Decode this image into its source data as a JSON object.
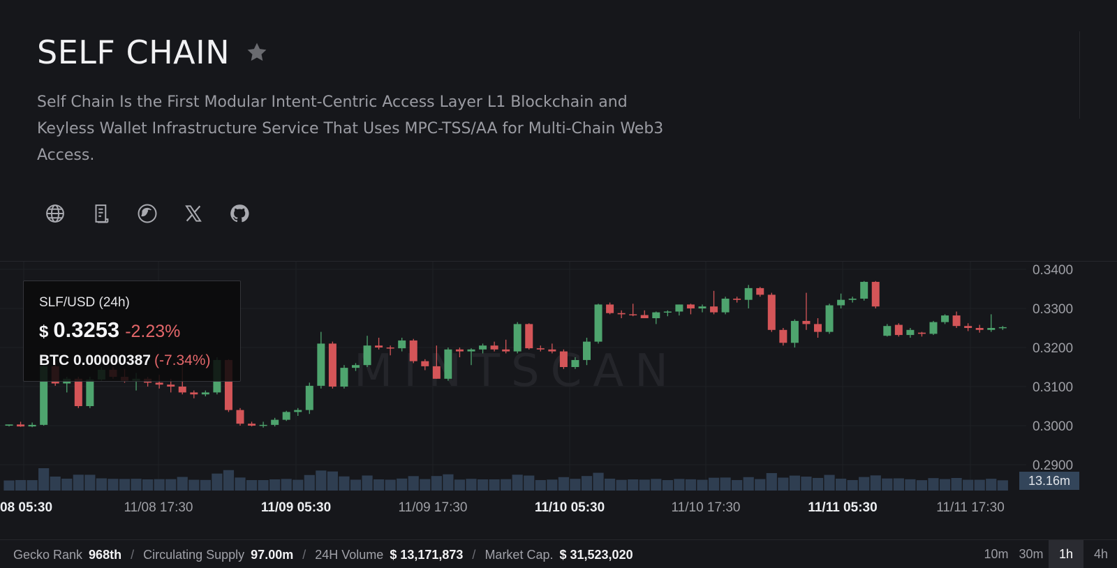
{
  "header": {
    "title": "SELF CHAIN",
    "description": "Self Chain Is the First Modular Intent-Centric Access Layer L1 Blockchain and Keyless Wallet Infrastructure Service That Uses MPC-TSS/AA for Multi-Chain Web3 Access.",
    "favorite_icon": "star-icon",
    "social_icons": [
      "globe-icon",
      "document-icon",
      "coingecko-icon",
      "x-icon",
      "github-icon"
    ]
  },
  "tooltip": {
    "pair": "SLF/USD (24h)",
    "currency_symbol": "$",
    "price": "0.3253",
    "change": "-2.23%",
    "btc_price": "BTC 0.00000387",
    "btc_change": "(-7.34%)"
  },
  "chart": {
    "watermark": "MINTSCAN",
    "volume_label": "13.16m",
    "colors": {
      "up": "#4ea46e",
      "down": "#d45558",
      "volume": "#2f3e51",
      "volume_label_bg": "#33455a"
    }
  },
  "chart_data": {
    "type": "candlestick",
    "y_ticks": [
      "0.3400",
      "0.3300",
      "0.3200",
      "0.3100",
      "0.3000",
      "0.2900"
    ],
    "ylim": [
      0.29,
      0.34
    ],
    "x_ticks": [
      {
        "label": "08 05:30",
        "bold": true
      },
      {
        "label": "11/08 17:30",
        "bold": false
      },
      {
        "label": "11/09 05:30",
        "bold": true
      },
      {
        "label": "11/09 17:30",
        "bold": false
      },
      {
        "label": "11/10 05:30",
        "bold": true
      },
      {
        "label": "11/10 17:30",
        "bold": false
      },
      {
        "label": "11/11 05:30",
        "bold": true
      },
      {
        "label": "11/11 17:30",
        "bold": false
      }
    ],
    "candles": [
      [
        0.3,
        0.3003,
        0.2998,
        0.3003
      ],
      [
        0.3003,
        0.301,
        0.2997,
        0.2998
      ],
      [
        0.2998,
        0.3008,
        0.2996,
        0.3002
      ],
      [
        0.3002,
        0.316,
        0.3,
        0.3152
      ],
      [
        0.3152,
        0.3162,
        0.3102,
        0.3108
      ],
      [
        0.3108,
        0.3125,
        0.3085,
        0.312
      ],
      [
        0.312,
        0.3125,
        0.3045,
        0.305
      ],
      [
        0.305,
        0.3125,
        0.3045,
        0.3118
      ],
      [
        0.3118,
        0.315,
        0.3115,
        0.3143
      ],
      [
        0.3143,
        0.315,
        0.312,
        0.3125
      ],
      [
        0.3125,
        0.3145,
        0.311,
        0.3115
      ],
      [
        0.3115,
        0.3135,
        0.309,
        0.312
      ],
      [
        0.312,
        0.3125,
        0.31,
        0.311
      ],
      [
        0.311,
        0.313,
        0.3095,
        0.3105
      ],
      [
        0.3105,
        0.312,
        0.3085,
        0.31
      ],
      [
        0.31,
        0.316,
        0.308,
        0.3085
      ],
      [
        0.3085,
        0.309,
        0.307,
        0.308
      ],
      [
        0.308,
        0.309,
        0.3075,
        0.3085
      ],
      [
        0.3085,
        0.3175,
        0.308,
        0.3168
      ],
      [
        0.3168,
        0.317,
        0.3035,
        0.304
      ],
      [
        0.304,
        0.3045,
        0.3,
        0.3005
      ],
      [
        0.3005,
        0.301,
        0.2998,
        0.3
      ],
      [
        0.3,
        0.301,
        0.2995,
        0.3002
      ],
      [
        0.3002,
        0.302,
        0.2998,
        0.3015
      ],
      [
        0.3015,
        0.3038,
        0.3012,
        0.3035
      ],
      [
        0.3035,
        0.3045,
        0.3025,
        0.304
      ],
      [
        0.304,
        0.311,
        0.303,
        0.3102
      ],
      [
        0.3102,
        0.324,
        0.3095,
        0.321
      ],
      [
        0.321,
        0.3215,
        0.3095,
        0.31
      ],
      [
        0.31,
        0.3155,
        0.3095,
        0.3148
      ],
      [
        0.3148,
        0.316,
        0.314,
        0.3155
      ],
      [
        0.3155,
        0.323,
        0.315,
        0.3205
      ],
      [
        0.3205,
        0.3225,
        0.3195,
        0.32
      ],
      [
        0.32,
        0.3205,
        0.318,
        0.3198
      ],
      [
        0.3198,
        0.3225,
        0.319,
        0.3218
      ],
      [
        0.3218,
        0.3222,
        0.316,
        0.3165
      ],
      [
        0.3165,
        0.317,
        0.3142,
        0.3152
      ],
      [
        0.3152,
        0.3205,
        0.312,
        0.312
      ],
      [
        0.312,
        0.32,
        0.3115,
        0.3195
      ],
      [
        0.3195,
        0.32,
        0.3175,
        0.319
      ],
      [
        0.319,
        0.3198,
        0.3155,
        0.3195
      ],
      [
        0.3195,
        0.321,
        0.3185,
        0.3205
      ],
      [
        0.3205,
        0.3215,
        0.319,
        0.3195
      ],
      [
        0.3195,
        0.322,
        0.3185,
        0.319
      ],
      [
        0.319,
        0.3265,
        0.3185,
        0.326
      ],
      [
        0.326,
        0.3262,
        0.3195,
        0.3198
      ],
      [
        0.3198,
        0.3205,
        0.319,
        0.3195
      ],
      [
        0.3195,
        0.321,
        0.3185,
        0.319
      ],
      [
        0.319,
        0.3195,
        0.3145,
        0.315
      ],
      [
        0.315,
        0.3175,
        0.3145,
        0.3168
      ],
      [
        0.3168,
        0.3225,
        0.3155,
        0.3215
      ],
      [
        0.3215,
        0.3312,
        0.321,
        0.331
      ],
      [
        0.331,
        0.3315,
        0.3285,
        0.3288
      ],
      [
        0.3288,
        0.3295,
        0.3275,
        0.3285
      ],
      [
        0.3285,
        0.3312,
        0.328,
        0.3283
      ],
      [
        0.3283,
        0.3295,
        0.3275,
        0.3275
      ],
      [
        0.3275,
        0.3292,
        0.326,
        0.329
      ],
      [
        0.329,
        0.3295,
        0.328,
        0.3292
      ],
      [
        0.3292,
        0.331,
        0.3282,
        0.331
      ],
      [
        0.331,
        0.3312,
        0.3285,
        0.33
      ],
      [
        0.33,
        0.331,
        0.329,
        0.3305
      ],
      [
        0.3305,
        0.3345,
        0.3285,
        0.329
      ],
      [
        0.329,
        0.333,
        0.3285,
        0.3325
      ],
      [
        0.3325,
        0.333,
        0.3315,
        0.3322
      ],
      [
        0.3322,
        0.336,
        0.33,
        0.3352
      ],
      [
        0.3352,
        0.3355,
        0.333,
        0.3335
      ],
      [
        0.3335,
        0.334,
        0.324,
        0.3245
      ],
      [
        0.3245,
        0.325,
        0.3205,
        0.3212
      ],
      [
        0.3212,
        0.3272,
        0.32,
        0.3268
      ],
      [
        0.3268,
        0.334,
        0.3245,
        0.326
      ],
      [
        0.326,
        0.3275,
        0.3225,
        0.324
      ],
      [
        0.324,
        0.3312,
        0.3235,
        0.3308
      ],
      [
        0.3308,
        0.3338,
        0.33,
        0.3322
      ],
      [
        0.3322,
        0.333,
        0.3315,
        0.3325
      ],
      [
        0.3325,
        0.337,
        0.332,
        0.3368
      ],
      [
        0.3368,
        0.337,
        0.33,
        0.3305
      ],
      [
        0.323,
        0.326,
        0.3228,
        0.3255
      ],
      [
        0.3258,
        0.3262,
        0.3228,
        0.3232
      ],
      [
        0.3232,
        0.325,
        0.3225,
        0.3245
      ],
      [
        0.3238,
        0.324,
        0.3228,
        0.3235
      ],
      [
        0.3235,
        0.3268,
        0.3232,
        0.3265
      ],
      [
        0.3265,
        0.3285,
        0.326,
        0.3282
      ],
      [
        0.3282,
        0.3292,
        0.325,
        0.3255
      ],
      [
        0.3255,
        0.3262,
        0.3242,
        0.325
      ],
      [
        0.325,
        0.3258,
        0.3238,
        0.3245
      ],
      [
        0.3245,
        0.3285,
        0.324,
        0.325
      ],
      [
        0.325,
        0.3255,
        0.3245,
        0.3252
      ]
    ],
    "volume_max": 13.16
  },
  "footer": {
    "stats": [
      {
        "label": "Gecko Rank",
        "value": "968th"
      },
      {
        "label": "Circulating Supply",
        "value": "97.00m"
      },
      {
        "label": "24H Volume",
        "value": "$ 13,171,873"
      },
      {
        "label": "Market Cap.",
        "value": "$ 31,523,020"
      }
    ],
    "intervals": [
      {
        "label": "10m",
        "active": false
      },
      {
        "label": "30m",
        "active": false
      },
      {
        "label": "1h",
        "active": true
      },
      {
        "label": "4h",
        "active": false
      }
    ]
  }
}
